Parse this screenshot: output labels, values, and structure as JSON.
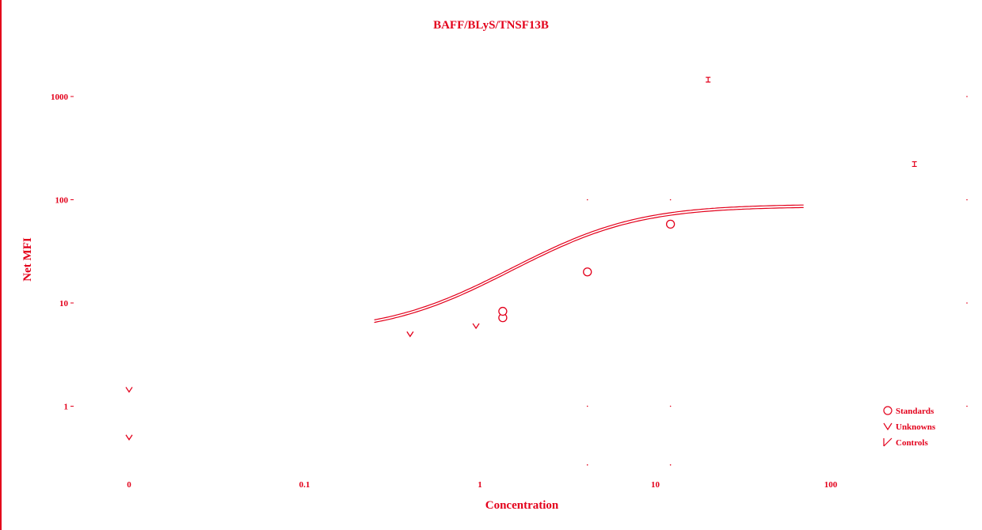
{
  "chart_data": {
    "type": "scatter",
    "title": "BAFF/BLyS/TNSF13B",
    "xlabel": "Concentration",
    "ylabel": "Net MFI",
    "x_scale": "log",
    "y_scale": "log",
    "x_ticks": [
      "0",
      "0.1",
      "1",
      "10",
      "100"
    ],
    "y_ticks": [
      "1000",
      "100",
      "10",
      "1"
    ],
    "accent_color": "#e3001b",
    "legend": {
      "position": "bottom-right",
      "entries": [
        {
          "name": "Standards",
          "symbol": "circle"
        },
        {
          "name": "Unknowns",
          "symbol": "v"
        },
        {
          "name": "Controls",
          "symbol": "slash"
        }
      ]
    },
    "series": [
      {
        "name": "Standards",
        "points": [
          {
            "x": 1.35,
            "y": 7.2
          },
          {
            "x": 1.35,
            "y": 8.3
          },
          {
            "x": 4.1,
            "y": 20
          },
          {
            "x": 12.2,
            "y": 58
          }
        ]
      },
      {
        "name": "Unknowns",
        "points": [
          {
            "x": 0.4,
            "y": 5.0
          },
          {
            "x": 0.95,
            "y": 6.0
          },
          {
            "x": "0",
            "y": 1.45
          },
          {
            "x": "0",
            "y": 0.5
          }
        ]
      },
      {
        "name": "Controls",
        "points": [
          {
            "x": 20,
            "y": 1380
          },
          {
            "x": 300,
            "y": 210
          }
        ]
      }
    ],
    "fit_curve": {
      "x_range": [
        0.25,
        70
      ],
      "bottom": 5.1,
      "top": 88,
      "ec50": 4.2,
      "hill": 1.4
    }
  }
}
